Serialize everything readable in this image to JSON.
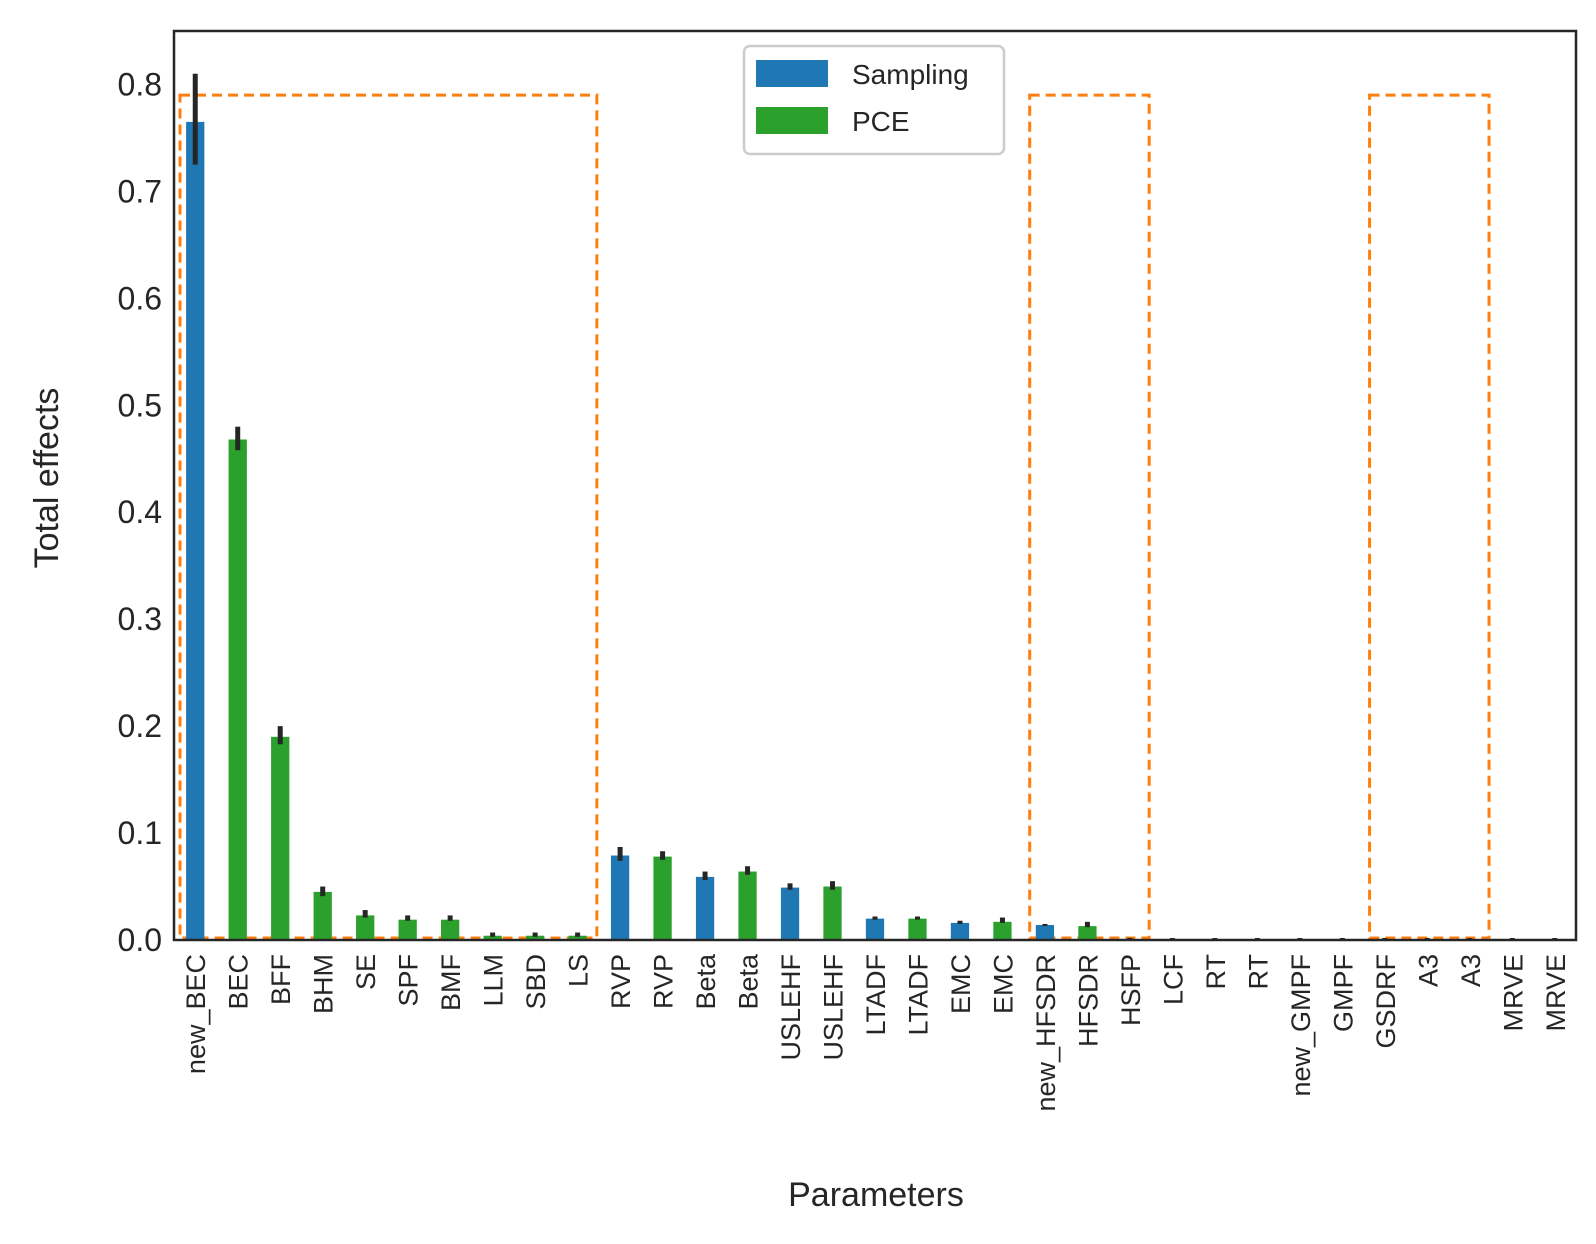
{
  "chart_data": {
    "type": "bar",
    "xlabel": "Parameters",
    "ylabel": "Total effects",
    "ylim": [
      0.0,
      0.85
    ],
    "yticks": [
      0.0,
      0.1,
      0.2,
      0.3,
      0.4,
      0.5,
      0.6,
      0.7,
      0.8
    ],
    "ytick_labels": [
      "0.0",
      "0.1",
      "0.2",
      "0.3",
      "0.4",
      "0.5",
      "0.6",
      "0.7",
      "0.8"
    ],
    "grid": false,
    "legend": {
      "placement": "top-center",
      "entries": [
        {
          "label": "Sampling",
          "color": "#1f77b4"
        },
        {
          "label": "PCE",
          "color": "#2ca02c"
        }
      ]
    },
    "colors": {
      "Sampling": "#1f77b4",
      "PCE": "#2ca02c",
      "error_bar": "#262626",
      "highlight_box": "#ff7f0e"
    },
    "categories": [
      "new_BEC",
      "BEC",
      "BFF",
      "BHM",
      "SE",
      "SPF",
      "BMF",
      "LLM",
      "SBD",
      "LS",
      "RVP",
      "RVP",
      "Beta",
      "Beta",
      "USLEHF",
      "USLEHF",
      "LTADF",
      "LTADF",
      "EMC",
      "EMC",
      "new_HFSDR",
      "HFSDR",
      "HSFP",
      "LCF",
      "RT",
      "RT",
      "new_GMPF",
      "GMPF",
      "GSDRF",
      "A3",
      "A3",
      "MRVE",
      "MRVE"
    ],
    "bars": [
      {
        "label": "new_BEC",
        "method": "Sampling",
        "value": 0.765,
        "err_low": 0.725,
        "err_high": 0.81
      },
      {
        "label": "BEC",
        "method": "PCE",
        "value": 0.468,
        "err_low": 0.458,
        "err_high": 0.48
      },
      {
        "label": "BFF",
        "method": "PCE",
        "value": 0.19,
        "err_low": 0.183,
        "err_high": 0.2
      },
      {
        "label": "BHM",
        "method": "PCE",
        "value": 0.045,
        "err_low": 0.041,
        "err_high": 0.05
      },
      {
        "label": "SE",
        "method": "PCE",
        "value": 0.023,
        "err_low": 0.021,
        "err_high": 0.028
      },
      {
        "label": "SPF",
        "method": "PCE",
        "value": 0.019,
        "err_low": 0.018,
        "err_high": 0.023
      },
      {
        "label": "BMF",
        "method": "PCE",
        "value": 0.019,
        "err_low": 0.018,
        "err_high": 0.023
      },
      {
        "label": "LLM",
        "method": "PCE",
        "value": 0.004,
        "err_low": 0.003,
        "err_high": 0.007
      },
      {
        "label": "SBD",
        "method": "PCE",
        "value": 0.004,
        "err_low": 0.003,
        "err_high": 0.007
      },
      {
        "label": "LS",
        "method": "PCE",
        "value": 0.004,
        "err_low": 0.003,
        "err_high": 0.007
      },
      {
        "label": "RVP",
        "method": "Sampling",
        "value": 0.079,
        "err_low": 0.074,
        "err_high": 0.087
      },
      {
        "label": "RVP",
        "method": "PCE",
        "value": 0.078,
        "err_low": 0.075,
        "err_high": 0.083
      },
      {
        "label": "Beta",
        "method": "Sampling",
        "value": 0.059,
        "err_low": 0.056,
        "err_high": 0.064
      },
      {
        "label": "Beta",
        "method": "PCE",
        "value": 0.064,
        "err_low": 0.061,
        "err_high": 0.069
      },
      {
        "label": "USLEHF",
        "method": "Sampling",
        "value": 0.049,
        "err_low": 0.047,
        "err_high": 0.053
      },
      {
        "label": "USLEHF",
        "method": "PCE",
        "value": 0.05,
        "err_low": 0.047,
        "err_high": 0.055
      },
      {
        "label": "LTADF",
        "method": "Sampling",
        "value": 0.02,
        "err_low": 0.019,
        "err_high": 0.022
      },
      {
        "label": "LTADF",
        "method": "PCE",
        "value": 0.02,
        "err_low": 0.019,
        "err_high": 0.022
      },
      {
        "label": "EMC",
        "method": "Sampling",
        "value": 0.016,
        "err_low": 0.015,
        "err_high": 0.018
      },
      {
        "label": "EMC",
        "method": "PCE",
        "value": 0.017,
        "err_low": 0.016,
        "err_high": 0.021
      },
      {
        "label": "new_HFSDR",
        "method": "Sampling",
        "value": 0.014,
        "err_low": 0.013,
        "err_high": 0.015
      },
      {
        "label": "HFSDR",
        "method": "PCE",
        "value": 0.013,
        "err_low": 0.012,
        "err_high": 0.017
      },
      {
        "label": "HSFP",
        "method": "PCE",
        "value": 0.0,
        "err_low": 0.0,
        "err_high": 0.002
      },
      {
        "label": "LCF",
        "method": "PCE",
        "value": 0.0,
        "err_low": 0.0,
        "err_high": 0.001
      },
      {
        "label": "RT",
        "method": "PCE",
        "value": 0.0,
        "err_low": 0.0,
        "err_high": 0.0
      },
      {
        "label": "RT",
        "method": "PCE",
        "value": 0.0,
        "err_low": 0.0,
        "err_high": 0.001
      },
      {
        "label": "new_GMPF",
        "method": "PCE",
        "value": 0.0,
        "err_low": 0.0,
        "err_high": 0.0
      },
      {
        "label": "GMPF",
        "method": "PCE",
        "value": 0.0,
        "err_low": 0.0,
        "err_high": 0.001
      },
      {
        "label": "GSDRF",
        "method": "PCE",
        "value": 0.0,
        "err_low": 0.0,
        "err_high": 0.001
      },
      {
        "label": "A3",
        "method": "PCE",
        "value": 0.0,
        "err_low": 0.0,
        "err_high": 0.0
      },
      {
        "label": "A3",
        "method": "PCE",
        "value": 0.0,
        "err_low": 0.0,
        "err_high": 0.001
      },
      {
        "label": "MRVE",
        "method": "PCE",
        "value": 0.0,
        "err_low": 0.0,
        "err_high": 0.0
      },
      {
        "label": "MRVE",
        "method": "PCE",
        "value": 0.0,
        "err_low": 0.0,
        "err_high": 0.001
      }
    ],
    "highlight_boxes": [
      {
        "start_category_index": 0,
        "end_category_index": 9,
        "y_low": 0.0,
        "y_high": 0.79
      },
      {
        "start_category_index": 20,
        "end_category_index": 22,
        "y_low": 0.0,
        "y_high": 0.79
      },
      {
        "start_category_index": 28,
        "end_category_index": 30,
        "y_low": 0.0,
        "y_high": 0.79
      }
    ]
  }
}
